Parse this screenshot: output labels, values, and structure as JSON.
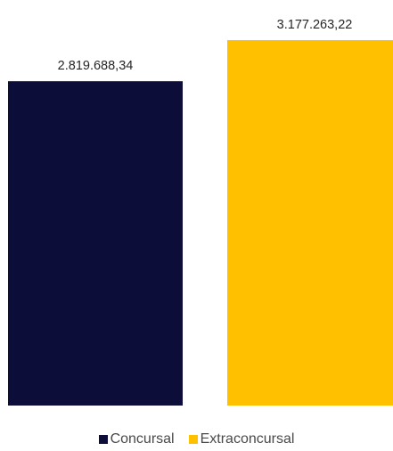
{
  "chart_data": {
    "type": "bar",
    "title": "",
    "xlabel": "",
    "ylabel": "",
    "ylim": [
      0,
      3500000
    ],
    "grid": false,
    "legend_position": "bottom",
    "categories": [
      "Concursal",
      "Extraconcursal"
    ],
    "series": [
      {
        "name": "Concursal",
        "category": "Concursal",
        "value": 2819688.34,
        "label": "2.819.688,34",
        "color": "#0d0d3a"
      },
      {
        "name": "Extraconcursal",
        "category": "Extraconcursal",
        "value": 3177263.22,
        "label": "3.177.263,22",
        "color": "#ffc000"
      }
    ]
  }
}
